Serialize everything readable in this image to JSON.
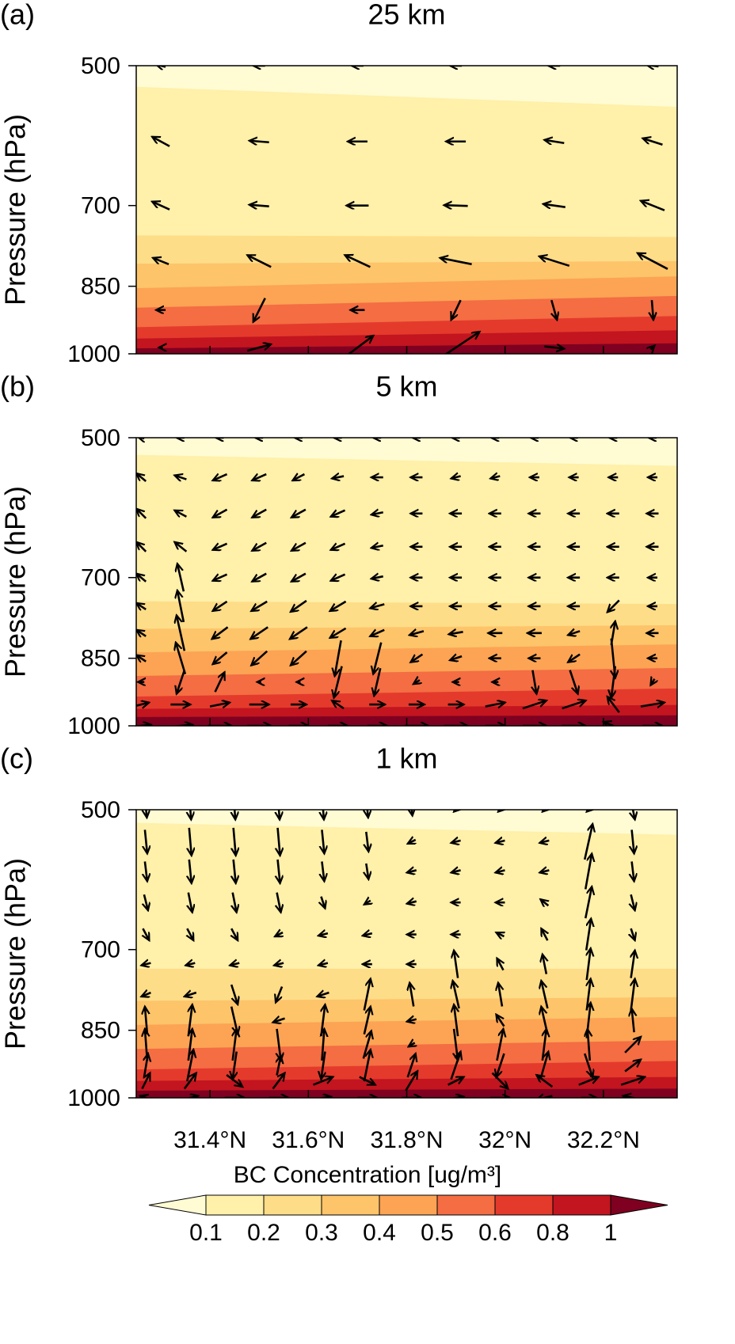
{
  "chart_data": [
    {
      "type": "contour",
      "label": "(a)",
      "title": "25 km",
      "ylabel": "Pressure (hPa)",
      "ylim": [
        1000,
        500
      ],
      "ylog": true,
      "yticks": [
        500,
        700,
        850,
        1000
      ],
      "xlim": [
        31.25,
        32.35
      ],
      "contours": {
        "left": [
          526,
          752,
          805,
          854,
          895,
          938,
          964,
          987
        ],
        "right": [
          552,
          755,
          800,
          830,
          870,
          913,
          945,
          975
        ]
      },
      "vectors": {
        "x": [
          31.3,
          31.5,
          31.7,
          31.9,
          32.1,
          32.3
        ],
        "p": [
          500,
          600,
          700,
          800,
          900,
          985
        ],
        "u": [
          [
            -12,
            -15,
            -15,
            -15,
            -15,
            -15
          ],
          [
            -22,
            -25,
            -25,
            -25,
            -25,
            -25
          ],
          [
            -22,
            -25,
            -28,
            -30,
            -28,
            -30
          ],
          [
            -20,
            -30,
            -32,
            -40,
            -38,
            -38
          ],
          [
            -12,
            -15,
            -18,
            -12,
            7,
            2
          ],
          [
            -5,
            30,
            40,
            60,
            25,
            5
          ]
        ],
        "w": [
          [
            3,
            0,
            0,
            0,
            0,
            2
          ],
          [
            12,
            2,
            0,
            0,
            4,
            8
          ],
          [
            10,
            2,
            0,
            1,
            4,
            12
          ],
          [
            8,
            15,
            15,
            8,
            12,
            20
          ],
          [
            0,
            -30,
            0,
            -25,
            -25,
            -25
          ],
          [
            0,
            8,
            30,
            40,
            -3,
            5
          ]
        ]
      }
    },
    {
      "type": "contour",
      "label": "(b)",
      "title": "5 km",
      "ylabel": "Pressure (hPa)",
      "ylim": [
        1000,
        500
      ],
      "ylog": true,
      "yticks": [
        500,
        700,
        850,
        1000
      ],
      "xlim": [
        31.25,
        32.35
      ],
      "contours": {
        "left": [
          521,
          741,
          792,
          838,
          887,
          932,
          960,
          979
        ],
        "right": [
          535,
          746,
          785,
          822,
          870,
          914,
          951,
          975
        ]
      },
      "vectors": {
        "x": [
          31.26,
          31.34,
          31.42,
          31.5,
          31.58,
          31.66,
          31.74,
          31.82,
          31.9,
          31.98,
          32.06,
          32.14,
          32.22,
          32.3
        ],
        "p": [
          500,
          550,
          600,
          650,
          700,
          750,
          800,
          850,
          900,
          950,
          1000
        ],
        "u": [
          [
            -8,
            -10,
            -10,
            -10,
            -10,
            -10,
            -10,
            -10,
            -10,
            -10,
            -10,
            -10,
            -10,
            -10
          ],
          [
            -12,
            -15,
            -18,
            -18,
            -15,
            -15,
            -15,
            -15,
            -12,
            -12,
            -12,
            -12,
            -12,
            -12
          ],
          [
            -12,
            -15,
            -18,
            -18,
            -18,
            -18,
            -15,
            -15,
            -15,
            -15,
            -15,
            -15,
            -15,
            -15
          ],
          [
            -12,
            -15,
            -18,
            -18,
            -18,
            -18,
            -15,
            -15,
            -15,
            -15,
            -15,
            -15,
            -15,
            -15
          ],
          [
            -12,
            -8,
            -18,
            -18,
            -18,
            -18,
            -15,
            -15,
            -15,
            -15,
            -15,
            -15,
            -15,
            -12
          ],
          [
            -12,
            -8,
            -18,
            -20,
            -20,
            -20,
            -18,
            -15,
            -15,
            -15,
            -15,
            -15,
            -15,
            -12
          ],
          [
            -12,
            -10,
            -20,
            -22,
            -22,
            -20,
            -18,
            -18,
            -18,
            -18,
            -18,
            -15,
            5,
            -15
          ],
          [
            -12,
            -12,
            -18,
            -20,
            -20,
            -8,
            -10,
            -15,
            -15,
            -15,
            -15,
            -15,
            5,
            -12
          ],
          [
            -8,
            -10,
            12,
            -5,
            -5,
            -10,
            -8,
            -8,
            -8,
            -8,
            5,
            10,
            -5,
            -5
          ],
          [
            20,
            25,
            25,
            25,
            20,
            -15,
            20,
            20,
            20,
            25,
            30,
            30,
            -15,
            30
          ],
          [
            25,
            30,
            30,
            30,
            25,
            25,
            25,
            30,
            30,
            25,
            30,
            30,
            -25,
            25
          ]
        ],
        "w": [
          [
            2,
            0,
            0,
            0,
            0,
            0,
            0,
            0,
            0,
            0,
            0,
            0,
            0,
            0
          ],
          [
            10,
            5,
            -8,
            -8,
            -8,
            -3,
            0,
            0,
            -3,
            -3,
            0,
            0,
            0,
            0
          ],
          [
            12,
            8,
            -10,
            -10,
            -10,
            -8,
            -3,
            0,
            0,
            0,
            0,
            0,
            0,
            0
          ],
          [
            12,
            12,
            -8,
            -10,
            -10,
            -8,
            -3,
            0,
            0,
            0,
            0,
            0,
            0,
            0
          ],
          [
            10,
            35,
            -8,
            -10,
            -10,
            -8,
            -3,
            0,
            0,
            0,
            0,
            0,
            0,
            0
          ],
          [
            8,
            40,
            -12,
            -12,
            -14,
            -12,
            -5,
            0,
            0,
            0,
            0,
            0,
            -15,
            0
          ],
          [
            8,
            45,
            -15,
            -15,
            -15,
            -12,
            -8,
            -5,
            -3,
            0,
            0,
            -5,
            30,
            0
          ],
          [
            8,
            40,
            -15,
            -18,
            -18,
            -45,
            -40,
            -10,
            -5,
            0,
            0,
            -10,
            -50,
            0
          ],
          [
            0,
            -30,
            25,
            0,
            0,
            -40,
            -35,
            -5,
            0,
            0,
            -30,
            -30,
            -40,
            -8
          ],
          [
            5,
            0,
            5,
            0,
            0,
            10,
            0,
            0,
            0,
            5,
            10,
            10,
            20,
            5
          ],
          [
            3,
            3,
            0,
            0,
            0,
            0,
            0,
            0,
            0,
            0,
            0,
            0,
            10,
            0
          ]
        ]
      }
    },
    {
      "type": "contour",
      "label": "(c)",
      "title": "1 km",
      "ylabel": "Pressure (hPa)",
      "ylim": [
        1000,
        500
      ],
      "ylog": true,
      "yticks": [
        500,
        700,
        850,
        1000
      ],
      "xlim": [
        31.25,
        32.35
      ],
      "xticks": [
        {
          "value": 31.4,
          "label": "31.4°N"
        },
        {
          "value": 31.6,
          "label": "31.6°N"
        },
        {
          "value": 31.8,
          "label": "31.8°N"
        },
        {
          "value": 32.0,
          "label": "32°N"
        },
        {
          "value": 32.2,
          "label": "32.2°N"
        }
      ],
      "contours": {
        "left": [
          516,
          733,
          792,
          839,
          889,
          934,
          960,
          983
        ],
        "right": [
          531,
          733,
          785,
          823,
          871,
          915,
          951,
          978
        ]
      },
      "vectors": {
        "x": [
          31.27,
          31.36,
          31.45,
          31.54,
          31.63,
          31.72,
          31.81,
          31.9,
          31.99,
          32.08,
          32.17,
          32.26
        ],
        "p": [
          500,
          540,
          580,
          625,
          675,
          725,
          780,
          830,
          880,
          925,
          960,
          1000
        ],
        "u": [
          [
            2,
            2,
            2,
            2,
            2,
            2,
            2,
            -5,
            -5,
            -5,
            -5,
            5
          ],
          [
            3,
            3,
            3,
            3,
            3,
            3,
            -10,
            -12,
            -12,
            -12,
            10,
            3
          ],
          [
            3,
            3,
            3,
            3,
            3,
            3,
            -12,
            -12,
            -12,
            -12,
            8,
            3
          ],
          [
            5,
            5,
            5,
            5,
            5,
            -8,
            -12,
            -12,
            -12,
            -10,
            8,
            5
          ],
          [
            8,
            8,
            8,
            -10,
            -12,
            -12,
            -12,
            -12,
            -10,
            -8,
            6,
            5
          ],
          [
            -12,
            -12,
            -12,
            -12,
            -12,
            -12,
            -12,
            -5,
            -8,
            -5,
            5,
            5
          ],
          [
            -12,
            -15,
            8,
            -8,
            -15,
            8,
            -5,
            -8,
            -5,
            -8,
            5,
            5
          ],
          [
            -3,
            5,
            8,
            -15,
            5,
            8,
            -12,
            -5,
            -10,
            -8,
            5,
            -3
          ],
          [
            -3,
            5,
            5,
            5,
            3,
            10,
            -8,
            5,
            8,
            5,
            -3,
            20
          ],
          [
            5,
            8,
            -5,
            5,
            -5,
            8,
            10,
            12,
            -10,
            10,
            10,
            20
          ],
          [
            10,
            15,
            20,
            15,
            25,
            20,
            15,
            20,
            20,
            -20,
            25,
            30
          ],
          [
            -15,
            20,
            25,
            25,
            20,
            25,
            25,
            20,
            25,
            -20,
            20,
            -25
          ]
        ],
        "w": [
          [
            -20,
            -25,
            -25,
            -25,
            -25,
            -20,
            -15,
            -5,
            -5,
            -5,
            -5,
            -25
          ],
          [
            -30,
            -35,
            -35,
            -35,
            -30,
            -25,
            -5,
            -3,
            -3,
            -3,
            45,
            -30
          ],
          [
            -25,
            -30,
            -30,
            -30,
            -25,
            -20,
            -3,
            -3,
            -3,
            -3,
            45,
            -25
          ],
          [
            -20,
            -25,
            -25,
            -25,
            -15,
            -5,
            -3,
            0,
            0,
            8,
            40,
            -20
          ],
          [
            -15,
            -15,
            -15,
            -5,
            -3,
            -3,
            0,
            0,
            5,
            15,
            40,
            -15
          ],
          [
            -3,
            -3,
            -3,
            -3,
            -3,
            0,
            0,
            35,
            15,
            25,
            40,
            35
          ],
          [
            -5,
            -5,
            -25,
            -20,
            -5,
            40,
            30,
            35,
            30,
            35,
            40,
            40
          ],
          [
            35,
            40,
            -35,
            -5,
            40,
            35,
            -3,
            40,
            15,
            35,
            45,
            30
          ],
          [
            40,
            40,
            40,
            -40,
            40,
            35,
            -5,
            -40,
            40,
            40,
            40,
            20
          ],
          [
            30,
            40,
            -35,
            25,
            -35,
            40,
            30,
            35,
            -30,
            35,
            -30,
            15
          ],
          [
            20,
            20,
            -15,
            20,
            10,
            -10,
            25,
            10,
            -20,
            15,
            10,
            10
          ],
          [
            5,
            5,
            0,
            0,
            3,
            0,
            0,
            3,
            0,
            -5,
            0,
            5
          ]
        ]
      }
    }
  ],
  "colorbar": {
    "title": "BC Concentration [ug/m³]",
    "levels": [
      0.1,
      0.2,
      0.3,
      0.4,
      0.5,
      0.6,
      0.8,
      1
    ],
    "colors": [
      "#fffcd4",
      "#fff0aa",
      "#fedd88",
      "#fdc46a",
      "#fca454",
      "#f46d43",
      "#e43a2c",
      "#c2151f",
      "#7f0020"
    ]
  }
}
